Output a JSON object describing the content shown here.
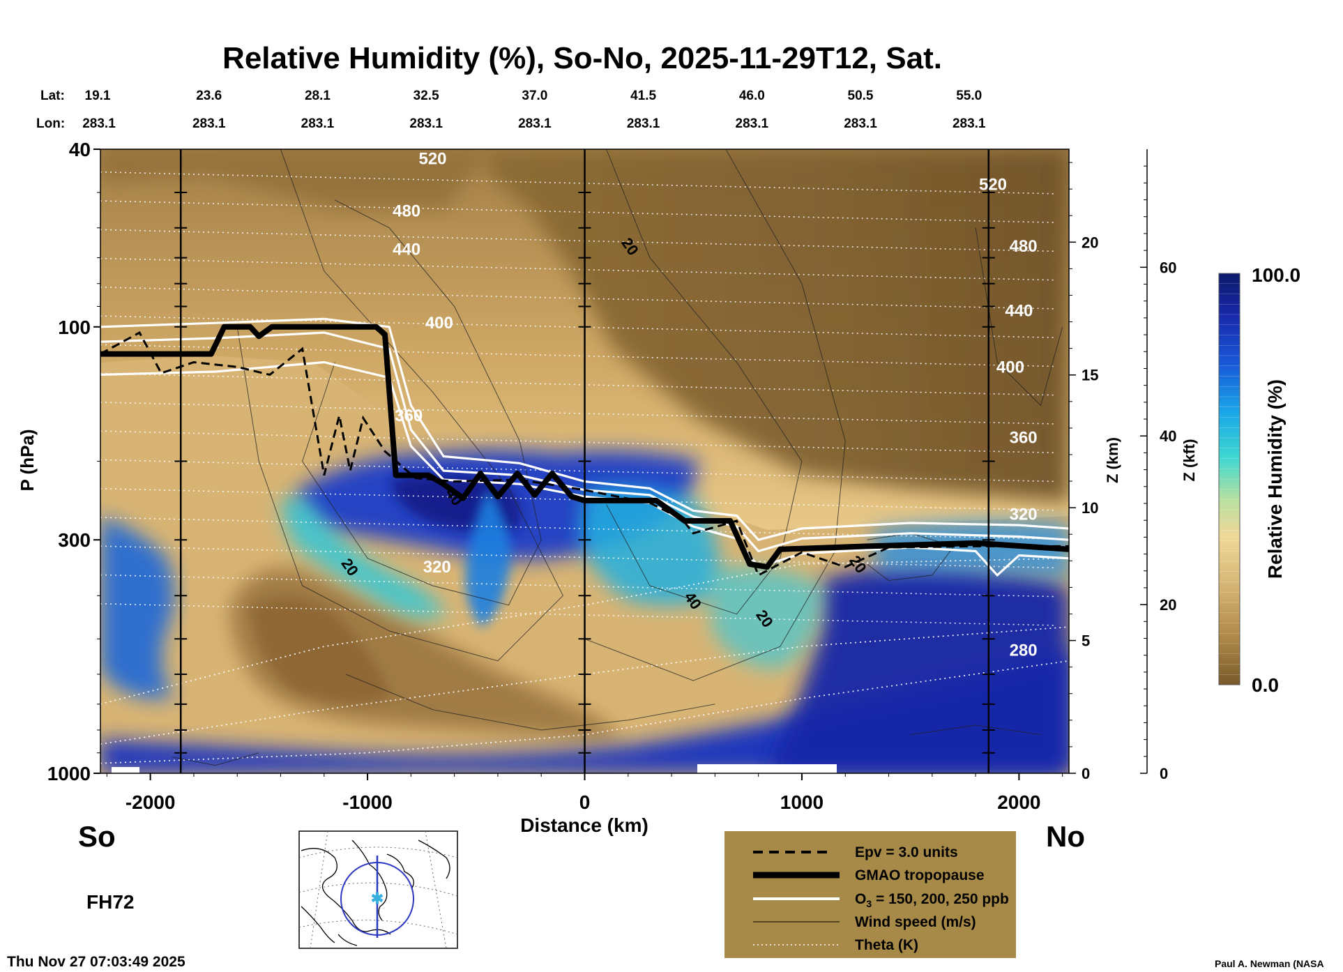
{
  "chart_data": {
    "type": "heatmap",
    "title": "Relative Humidity (%), So-No, 2025-11-29T12, Sat.",
    "xlabel": "Distance (km)",
    "ylabel": "P (hPa)",
    "xlim": [
      -2230,
      2230
    ],
    "ylim_hpa": [
      1000,
      40
    ],
    "y_scale": "log",
    "x_ticks": [
      -2000,
      -1000,
      0,
      1000,
      2000
    ],
    "y_ticks": [
      40,
      100,
      300,
      1000
    ],
    "z_km_label": "Z (km)",
    "z_km_ticks": [
      0,
      5,
      10,
      15,
      20
    ],
    "z_kft_label": "Z (kft)",
    "z_kft_ticks": [
      0,
      20,
      40,
      60
    ],
    "lat_label": "Lat:",
    "lon_label": "Lon:",
    "lat_lon_columns": [
      {
        "x_km": -2230,
        "lat": "19.1",
        "lon": "283.1"
      },
      {
        "x_km": -1730,
        "lat": "23.6",
        "lon": "283.1"
      },
      {
        "x_km": -1230,
        "lat": "28.1",
        "lon": "283.1"
      },
      {
        "x_km": -730,
        "lat": "32.5",
        "lon": "283.1"
      },
      {
        "x_km": -230,
        "lat": "37.0",
        "lon": "283.1"
      },
      {
        "x_km": 270,
        "lat": "41.5",
        "lon": "283.1"
      },
      {
        "x_km": 770,
        "lat": "46.0",
        "lon": "283.1"
      },
      {
        "x_km": 1270,
        "lat": "50.5",
        "lon": "283.1"
      },
      {
        "x_km": 1770,
        "lat": "55.0",
        "lon": "283.1"
      }
    ],
    "vertical_markers_km": [
      -1860,
      0,
      1860
    ],
    "colorbar": {
      "label": "Relative Humidity (%)",
      "max": "100.0",
      "min": "0.0",
      "colors": [
        "#7a5a2a",
        "#b08a4a",
        "#d8b878",
        "#f0d898",
        "#b8e0a0",
        "#40d8d0",
        "#1aa8e8",
        "#1858d8",
        "#1828a8",
        "#0c1a6a"
      ]
    },
    "tropopause_gmao": [
      {
        "x": -2230,
        "p": 115
      },
      {
        "x": -1720,
        "p": 115
      },
      {
        "x": -1660,
        "p": 100
      },
      {
        "x": -1540,
        "p": 100
      },
      {
        "x": -1500,
        "p": 105
      },
      {
        "x": -1440,
        "p": 100
      },
      {
        "x": -960,
        "p": 100
      },
      {
        "x": -920,
        "p": 104
      },
      {
        "x": -870,
        "p": 215
      },
      {
        "x": -720,
        "p": 215
      },
      {
        "x": -650,
        "p": 225
      },
      {
        "x": -560,
        "p": 242
      },
      {
        "x": -480,
        "p": 213
      },
      {
        "x": -400,
        "p": 240
      },
      {
        "x": -310,
        "p": 213
      },
      {
        "x": -230,
        "p": 238
      },
      {
        "x": -150,
        "p": 213
      },
      {
        "x": -60,
        "p": 240
      },
      {
        "x": 0,
        "p": 245
      },
      {
        "x": 330,
        "p": 245
      },
      {
        "x": 460,
        "p": 272
      },
      {
        "x": 670,
        "p": 272
      },
      {
        "x": 760,
        "p": 340
      },
      {
        "x": 840,
        "p": 345
      },
      {
        "x": 900,
        "p": 315
      },
      {
        "x": 1300,
        "p": 310
      },
      {
        "x": 1800,
        "p": 305
      },
      {
        "x": 2230,
        "p": 315
      }
    ],
    "ozone_contours": [
      [
        {
          "x": -2230,
          "p": 100
        },
        {
          "x": -1700,
          "p": 98
        },
        {
          "x": -1200,
          "p": 96
        },
        {
          "x": -900,
          "p": 100
        },
        {
          "x": -800,
          "p": 150
        },
        {
          "x": -650,
          "p": 195
        },
        {
          "x": -300,
          "p": 202
        },
        {
          "x": 0,
          "p": 222
        },
        {
          "x": 300,
          "p": 230
        },
        {
          "x": 500,
          "p": 258
        },
        {
          "x": 700,
          "p": 265
        },
        {
          "x": 800,
          "p": 300
        },
        {
          "x": 1000,
          "p": 283
        },
        {
          "x": 1500,
          "p": 275
        },
        {
          "x": 2000,
          "p": 278
        },
        {
          "x": 2230,
          "p": 283
        }
      ],
      [
        {
          "x": -2230,
          "p": 108
        },
        {
          "x": -1700,
          "p": 106
        },
        {
          "x": -1200,
          "p": 103
        },
        {
          "x": -900,
          "p": 112
        },
        {
          "x": -800,
          "p": 170
        },
        {
          "x": -650,
          "p": 210
        },
        {
          "x": -300,
          "p": 215
        },
        {
          "x": 0,
          "p": 232
        },
        {
          "x": 300,
          "p": 238
        },
        {
          "x": 500,
          "p": 266
        },
        {
          "x": 700,
          "p": 280
        },
        {
          "x": 800,
          "p": 318
        },
        {
          "x": 1000,
          "p": 298
        },
        {
          "x": 1500,
          "p": 290
        },
        {
          "x": 2000,
          "p": 295
        },
        {
          "x": 2230,
          "p": 300
        }
      ],
      [
        {
          "x": -2230,
          "p": 128
        },
        {
          "x": -1700,
          "p": 126
        },
        {
          "x": -1200,
          "p": 120
        },
        {
          "x": -900,
          "p": 130
        },
        {
          "x": -800,
          "p": 185
        },
        {
          "x": -650,
          "p": 220
        },
        {
          "x": -300,
          "p": 225
        },
        {
          "x": 0,
          "p": 240
        },
        {
          "x": 300,
          "p": 248
        },
        {
          "x": 500,
          "p": 280
        },
        {
          "x": 700,
          "p": 298
        },
        {
          "x": 800,
          "p": 345
        },
        {
          "x": 1000,
          "p": 322
        },
        {
          "x": 1500,
          "p": 312
        },
        {
          "x": 1800,
          "p": 318
        },
        {
          "x": 1900,
          "p": 360
        },
        {
          "x": 2000,
          "p": 325
        },
        {
          "x": 2230,
          "p": 330
        }
      ]
    ],
    "epv_contour": [
      {
        "x": -2230,
        "p": 115
      },
      {
        "x": -2050,
        "p": 103
      },
      {
        "x": -1950,
        "p": 127
      },
      {
        "x": -1800,
        "p": 120
      },
      {
        "x": -1600,
        "p": 123
      },
      {
        "x": -1450,
        "p": 128
      },
      {
        "x": -1300,
        "p": 112
      },
      {
        "x": -1200,
        "p": 215
      },
      {
        "x": -1130,
        "p": 158
      },
      {
        "x": -1080,
        "p": 210
      },
      {
        "x": -1020,
        "p": 160
      },
      {
        "x": -920,
        "p": 190
      },
      {
        "x": -780,
        "p": 218
      },
      {
        "x": -600,
        "p": 222
      },
      {
        "x": -300,
        "p": 220
      },
      {
        "x": 0,
        "p": 232
      },
      {
        "x": 300,
        "p": 248
      },
      {
        "x": 450,
        "p": 270
      },
      {
        "x": 500,
        "p": 290
      },
      {
        "x": 700,
        "p": 272
      },
      {
        "x": 800,
        "p": 360
      },
      {
        "x": 1000,
        "p": 320
      },
      {
        "x": 1200,
        "p": 345
      },
      {
        "x": 1400,
        "p": 312
      },
      {
        "x": 1800,
        "p": 310
      },
      {
        "x": 2230,
        "p": 310
      }
    ],
    "theta_labels": [
      {
        "text": "520",
        "x": -700,
        "p": 42
      },
      {
        "text": "480",
        "x": -820,
        "p": 55
      },
      {
        "text": "440",
        "x": -820,
        "p": 67
      },
      {
        "text": "400",
        "x": -670,
        "p": 98
      },
      {
        "text": "360",
        "x": -810,
        "p": 158
      },
      {
        "text": "320",
        "x": -680,
        "p": 345
      },
      {
        "text": "520",
        "x": 1880,
        "p": 48
      },
      {
        "text": "480",
        "x": 2020,
        "p": 66
      },
      {
        "text": "440",
        "x": 2000,
        "p": 92
      },
      {
        "text": "400",
        "x": 1960,
        "p": 123
      },
      {
        "text": "360",
        "x": 2020,
        "p": 177
      },
      {
        "text": "320",
        "x": 2020,
        "p": 263
      },
      {
        "text": "280",
        "x": 2020,
        "p": 530
      }
    ],
    "wind_labels": [
      {
        "text": "20",
        "x": 210,
        "p": 66
      },
      {
        "text": "40",
        "x": -600,
        "p": 240
      },
      {
        "text": "20",
        "x": -1080,
        "p": 345
      },
      {
        "text": "40",
        "x": 500,
        "p": 410
      },
      {
        "text": "20",
        "x": 830,
        "p": 450
      },
      {
        "text": "20",
        "x": 1260,
        "p": 340
      }
    ],
    "legend_items": [
      {
        "style": "epv",
        "label": "Epv = 3.0 units"
      },
      {
        "style": "tropopause",
        "label": "GMAO tropopause"
      },
      {
        "style": "ozone",
        "label": "O3 = 150, 200, 250 ppb"
      },
      {
        "style": "wind",
        "label": "Wind speed (m/s)"
      },
      {
        "style": "theta",
        "label": "Theta (K)"
      }
    ],
    "legend_ozone_prefix": "O",
    "legend_ozone_sub": "3",
    "legend_ozone_suffix": " = 150, 200, 250 ppb"
  },
  "labels": {
    "south": "So",
    "north": "No",
    "forecast_hour": "FH72",
    "timestamp": "Thu Nov 27 07:03:49 2025",
    "credit": "Paul A. Newman (NASA"
  },
  "colors": {
    "tropopause": "#000000",
    "ozone": "#ffffff",
    "theta": "#ffffff",
    "legend_bg": "#a88a48",
    "map_circle": "#2c38c0",
    "map_track": "#2c38c0",
    "map_star": "#3ab0e0"
  }
}
